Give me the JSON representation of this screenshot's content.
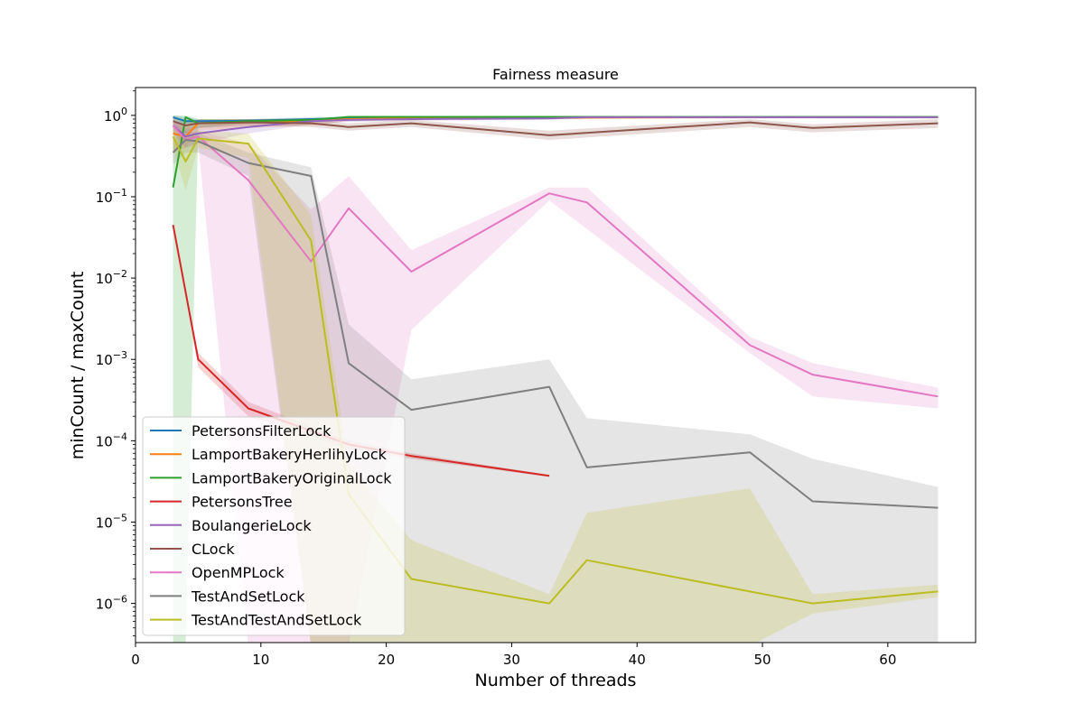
{
  "chart_data": {
    "type": "line",
    "title": "Fairness measure",
    "xlabel": "Number of threads",
    "ylabel": "minCount / maxCount",
    "yscale": "log",
    "xlim": [
      0,
      67
    ],
    "ylim": [
      3.3e-07,
      2.2
    ],
    "xticks": [
      0,
      10,
      20,
      30,
      40,
      50,
      60
    ],
    "xtick_labels": [
      "0",
      "10",
      "20",
      "30",
      "40",
      "50",
      "60"
    ],
    "yticks": [
      1e-06,
      1e-05,
      0.0001,
      0.001,
      0.01,
      0.1,
      1
    ],
    "ytick_labels": [
      {
        "base": "10",
        "exp": "−6"
      },
      {
        "base": "10",
        "exp": "−5"
      },
      {
        "base": "10",
        "exp": "−4"
      },
      {
        "base": "10",
        "exp": "−3"
      },
      {
        "base": "10",
        "exp": "−2"
      },
      {
        "base": "10",
        "exp": "−1"
      },
      {
        "base": "10",
        "exp": "0"
      }
    ],
    "grid": false,
    "legend_position": "lower-left",
    "series": [
      {
        "name": "PetersonsFilterLock",
        "color": "#1f77b4",
        "x": [
          3,
          4,
          5,
          9,
          14,
          17,
          22,
          33,
          36,
          49,
          54,
          64
        ],
        "y": [
          0.95,
          0.85,
          0.85,
          0.86,
          0.9,
          0.93,
          0.95,
          0.95,
          0.96,
          0.96,
          0.95,
          0.95
        ],
        "lower": [
          0.9,
          0.75,
          0.78,
          0.8,
          0.85,
          0.9,
          0.92,
          0.92,
          0.93,
          0.93,
          0.92,
          0.92
        ],
        "upper": [
          1.0,
          0.95,
          0.9,
          0.9,
          0.95,
          0.96,
          0.97,
          0.97,
          0.98,
          0.98,
          0.97,
          0.97
        ]
      },
      {
        "name": "LamportBakeryHerlihyLock",
        "color": "#ff7f0e",
        "x": [
          3,
          4,
          5,
          9,
          14,
          17,
          22,
          33,
          36,
          49,
          54,
          64
        ],
        "y": [
          0.6,
          0.55,
          0.8,
          0.82,
          0.85,
          0.9,
          0.92,
          0.93,
          0.94,
          0.95,
          0.95,
          0.95
        ],
        "lower": [
          0.35,
          0.4,
          0.65,
          0.7,
          0.75,
          0.85,
          0.88,
          0.9,
          0.9,
          0.92,
          0.92,
          0.92
        ],
        "upper": [
          0.85,
          0.75,
          0.9,
          0.9,
          0.92,
          0.95,
          0.96,
          0.96,
          0.97,
          0.97,
          0.97,
          0.97
        ]
      },
      {
        "name": "LamportBakeryOriginalLock",
        "color": "#2ca02c",
        "x": [
          3,
          4,
          5,
          9,
          14,
          17,
          22,
          33,
          36,
          49,
          54,
          64
        ],
        "y": [
          0.13,
          0.95,
          0.8,
          0.85,
          0.88,
          0.96,
          0.96,
          0.96,
          0.96,
          0.96,
          0.96,
          0.96
        ],
        "lower": [
          3e-07,
          3e-07,
          0.7,
          0.8,
          0.85,
          0.93,
          0.93,
          0.93,
          0.93,
          0.93,
          0.93,
          0.93
        ],
        "upper": [
          1.0,
          1.0,
          0.9,
          0.9,
          0.92,
          0.98,
          0.98,
          0.98,
          0.98,
          0.98,
          0.98,
          0.98
        ]
      },
      {
        "name": "PetersonsTree",
        "color": "#d62728",
        "x": [
          3,
          5,
          9,
          17,
          22,
          33
        ],
        "y": [
          0.045,
          0.001,
          0.00025,
          9e-05,
          6.5e-05,
          3.7e-05
        ],
        "lower": [
          0.045,
          0.0008,
          0.0002,
          8e-05,
          6e-05,
          3.6e-05
        ],
        "upper": [
          0.045,
          0.0012,
          0.0003,
          0.0001,
          7e-05,
          3.8e-05
        ]
      },
      {
        "name": "BoulangerieLock",
        "color": "#9467bd",
        "x": [
          3,
          4,
          5,
          9,
          14,
          17,
          22,
          33,
          36,
          49,
          54,
          64
        ],
        "y": [
          0.75,
          0.55,
          0.6,
          0.72,
          0.85,
          0.88,
          0.9,
          0.92,
          0.95,
          0.95,
          0.95,
          0.95
        ],
        "lower": [
          0.6,
          0.4,
          0.45,
          0.6,
          0.78,
          0.83,
          0.86,
          0.88,
          0.92,
          0.92,
          0.92,
          0.92
        ],
        "upper": [
          0.9,
          0.7,
          0.75,
          0.82,
          0.9,
          0.92,
          0.94,
          0.95,
          0.97,
          0.97,
          0.97,
          0.97
        ]
      },
      {
        "name": "CLock",
        "color": "#8c564b",
        "x": [
          3,
          4,
          5,
          9,
          14,
          17,
          22,
          33,
          49,
          54,
          64
        ],
        "y": [
          0.85,
          0.75,
          0.8,
          0.82,
          0.8,
          0.72,
          0.8,
          0.57,
          0.82,
          0.7,
          0.8
        ],
        "lower": [
          0.7,
          0.6,
          0.7,
          0.75,
          0.72,
          0.65,
          0.72,
          0.5,
          0.72,
          0.62,
          0.7
        ],
        "upper": [
          0.95,
          0.85,
          0.88,
          0.9,
          0.88,
          0.8,
          0.88,
          0.65,
          0.9,
          0.78,
          0.9
        ]
      },
      {
        "name": "OpenMPLock",
        "color": "#e377c2",
        "x": [
          3,
          4,
          5,
          9,
          14,
          17,
          22,
          33,
          36,
          49,
          54,
          64
        ],
        "y": [
          0.75,
          0.5,
          0.55,
          0.16,
          0.016,
          0.072,
          0.012,
          0.11,
          0.085,
          0.0015,
          0.00065,
          0.00035
        ],
        "lower": [
          0.6,
          0.4,
          0.45,
          3e-07,
          3e-07,
          3e-07,
          0.0023,
          0.09,
          0.04,
          0.0012,
          0.00035,
          0.00025
        ],
        "upper": [
          0.9,
          0.6,
          0.65,
          0.45,
          0.07,
          0.18,
          0.022,
          0.13,
          0.13,
          0.0019,
          0.0009,
          0.00045
        ]
      },
      {
        "name": "TestAndSetLock",
        "color": "#7f7f7f",
        "x": [
          3,
          4,
          5,
          9,
          14,
          17,
          22,
          33,
          36,
          49,
          54,
          64
        ],
        "y": [
          0.35,
          0.5,
          0.48,
          0.26,
          0.18,
          0.0009,
          0.00024,
          0.00046,
          4.7e-05,
          7.2e-05,
          1.8e-05,
          1.5e-05
        ],
        "lower": [
          0.25,
          0.35,
          0.35,
          0.18,
          3e-07,
          3e-07,
          3e-07,
          3e-07,
          3e-07,
          3e-07,
          3e-07,
          3e-07
        ],
        "upper": [
          0.5,
          0.65,
          0.6,
          0.35,
          0.23,
          0.0027,
          0.00057,
          0.001,
          0.00019,
          0.00012,
          6e-05,
          2.7e-05
        ]
      },
      {
        "name": "TestAndTestAndSetLock",
        "color": "#bcbd22",
        "x": [
          3,
          4,
          5,
          9,
          14,
          17,
          22,
          33,
          36,
          49,
          54,
          64
        ],
        "y": [
          0.55,
          0.27,
          0.52,
          0.45,
          0.029,
          2.2e-05,
          2e-06,
          1e-06,
          3.4e-06,
          1.4e-06,
          1e-06,
          1.4e-06
        ],
        "lower": [
          0.4,
          0.12,
          0.4,
          0.3,
          3e-07,
          3e-07,
          3e-07,
          3e-07,
          3e-07,
          3e-07,
          7.5e-07,
          1.2e-06
        ],
        "upper": [
          0.7,
          0.5,
          0.65,
          0.6,
          0.06,
          5e-05,
          6e-06,
          1.3e-06,
          1.3e-05,
          2.6e-05,
          1.3e-06,
          1.7e-06
        ]
      }
    ]
  }
}
